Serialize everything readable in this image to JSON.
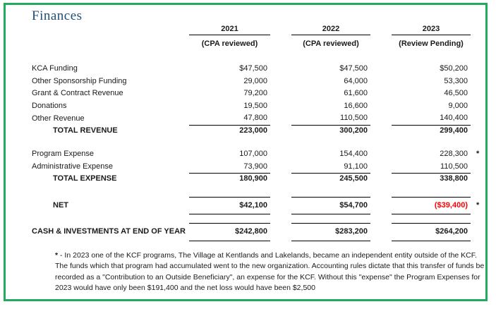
{
  "page": {
    "title": "Finances",
    "accent_border_color": "#21ab5e",
    "title_color": "#1f4e79",
    "negative_value_color": "#ff0000"
  },
  "columns": [
    {
      "year": "2021",
      "status": "(CPA reviewed)"
    },
    {
      "year": "2022",
      "status": "(CPA reviewed)"
    },
    {
      "year": "2023",
      "status": "(Review Pending)"
    }
  ],
  "revenue_rows": [
    {
      "label": "KCA Funding",
      "y2021": "$47,500",
      "y2022": "$47,500",
      "y2023": "$50,200"
    },
    {
      "label": "Other Sponsorship Funding",
      "y2021": "29,000",
      "y2022": "64,000",
      "y2023": "53,300"
    },
    {
      "label": "Grant & Contract Revenue",
      "y2021": "79,200",
      "y2022": "61,600",
      "y2023": "46,500"
    },
    {
      "label": "Donations",
      "y2021": "19,500",
      "y2022": "16,600",
      "y2023": "9,000"
    },
    {
      "label": "Other Revenue",
      "y2021": "47,800",
      "y2022": "110,500",
      "y2023": "140,400"
    }
  ],
  "total_revenue": {
    "label": "TOTAL REVENUE",
    "y2021": "223,000",
    "y2022": "300,200",
    "y2023": "299,400"
  },
  "expense_rows": [
    {
      "label": "Program Expense",
      "y2021": "107,000",
      "y2022": "154,400",
      "y2023": "228,300",
      "note_marker": "*"
    },
    {
      "label": "Administrative Expense",
      "y2021": "73,900",
      "y2022": "91,100",
      "y2023": "110,500"
    }
  ],
  "total_expense": {
    "label": "TOTAL EXPENSE",
    "y2021": "180,900",
    "y2022": "245,500",
    "y2023": "338,800"
  },
  "net": {
    "label": "NET",
    "y2021": "$42,100",
    "y2022": "$54,700",
    "y2023": "($39,400)",
    "note_marker": "*"
  },
  "cash": {
    "label": "CASH & INVESTMENTS AT END OF YEAR",
    "y2021": "$242,800",
    "y2022": "$283,200",
    "y2023": "$264,200"
  },
  "footnote": {
    "marker": "*",
    "text": " - In 2023 one of the KCF programs, The Village at Kentlands and Lakelands, became an independent entity outside of the KCF.  The funds which that program had accumulated went to the new organization.  Accounting rules dictate that this transfer of funds be recorded as a \"Contribution to an Outside Beneficiary\", an expense for the KCF.  Without this \"expense\" the Program Expenses for 2023 would have only been $191,400 and the net loss would have been $2,500"
  }
}
